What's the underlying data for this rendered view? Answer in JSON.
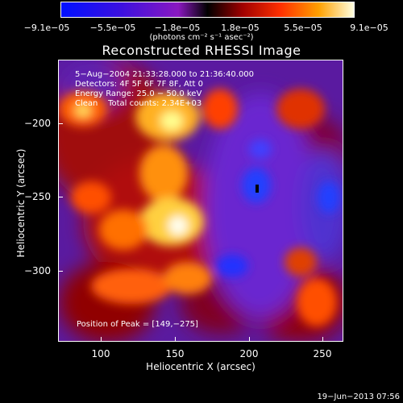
{
  "colorbar": {
    "ticks": [
      "−9.1e−05",
      "−5.5e−05",
      "−1.8e−05",
      "1.8e−05",
      "5.5e−05",
      "9.1e−05"
    ],
    "units": "(photons cm⁻² s⁻¹ asec⁻²)"
  },
  "title": "Reconstructed RHESSI Image",
  "info": {
    "line1": "5−Aug−2004 21:33:28.000 to 21:36:40.000",
    "line2": "Detectors: 4F 5F 6F 7F 8F, Att 0",
    "line3": "Energy Range: 25.0 − 50.0 keV",
    "line4": "Clean    Total counts: 2.34E+03"
  },
  "peak_label": "Position of Peak = [149,−275]",
  "axes": {
    "x_title": "Heliocentric X (arcsec)",
    "y_title": "Heliocentric Y (arcsec)",
    "x_ticks": [
      "100",
      "150",
      "200",
      "250"
    ],
    "y_ticks": [
      "−200",
      "−250",
      "−300"
    ]
  },
  "timestamp": "19−Jun−2013 07:56"
}
